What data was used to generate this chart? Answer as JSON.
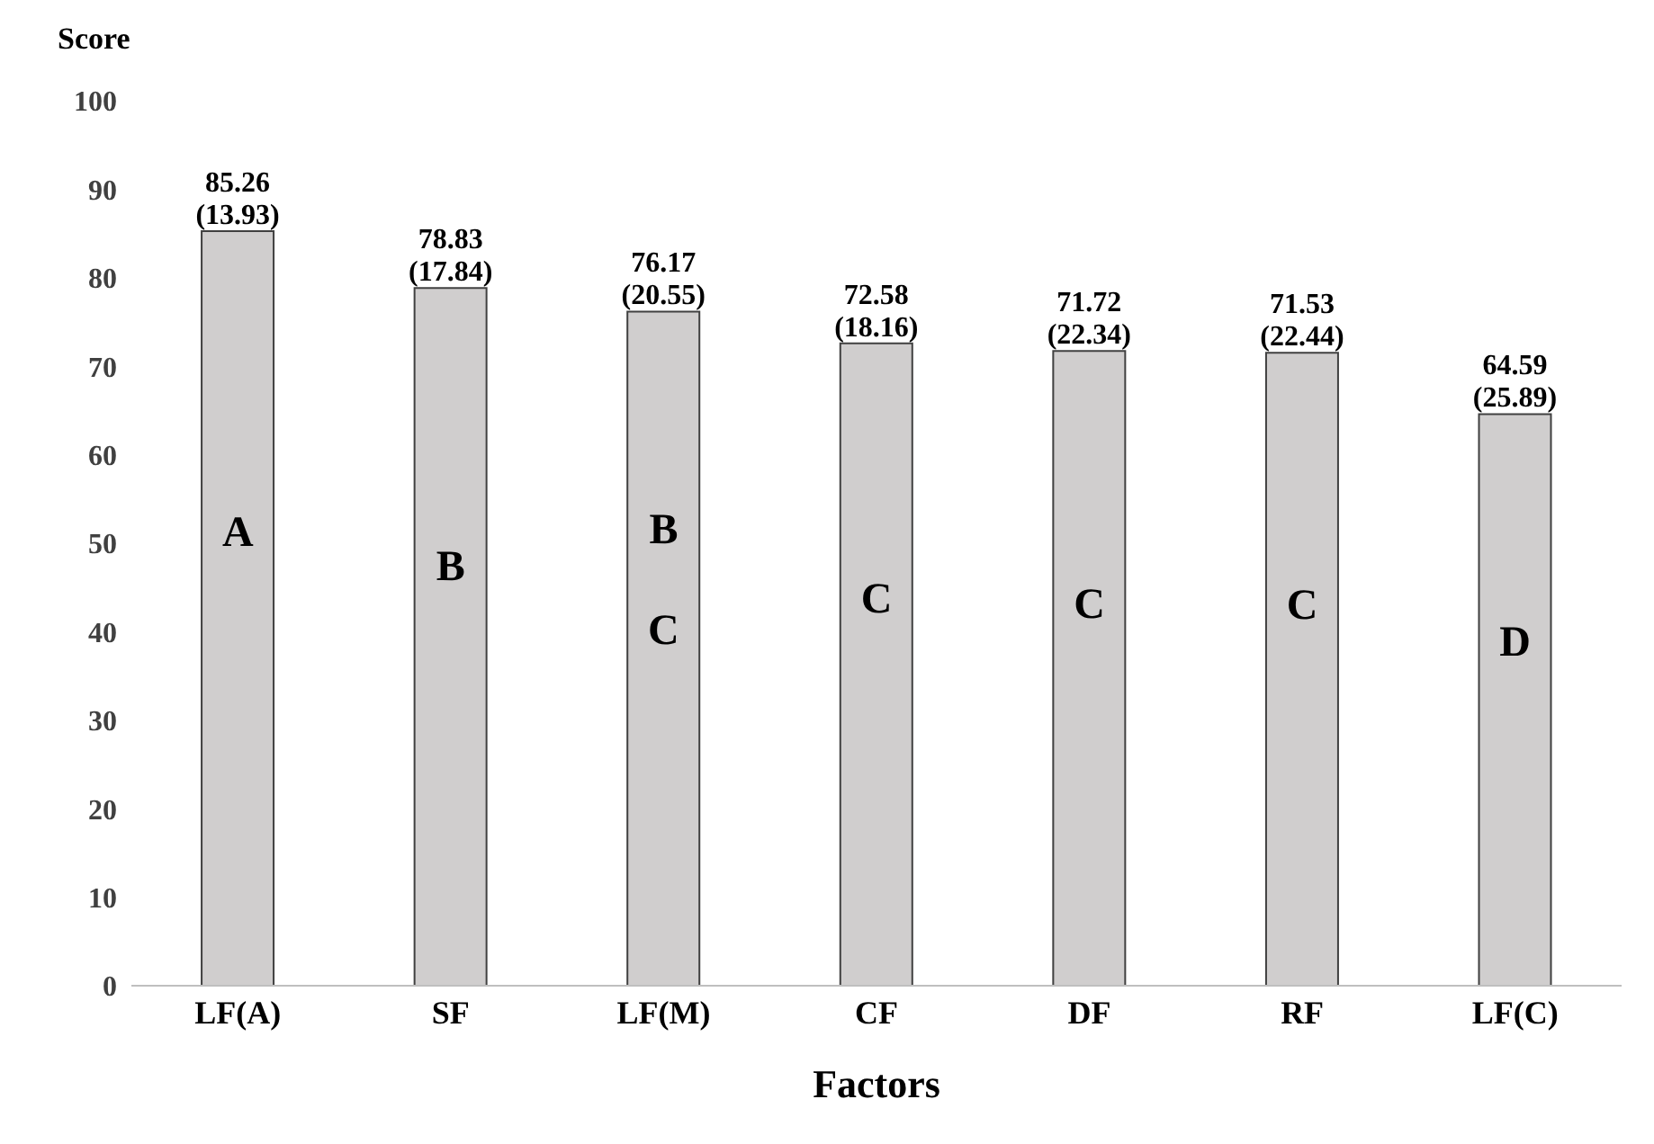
{
  "chart_data": {
    "type": "bar",
    "ylabel": "Score",
    "xlabel": "Factors",
    "categories": [
      "LF(A)",
      "SF",
      "LF(M)",
      "CF",
      "DF",
      "RF",
      "LF(C)"
    ],
    "values": [
      85.26,
      78.83,
      76.17,
      72.58,
      71.72,
      71.53,
      64.59
    ],
    "value_labels": [
      "85.26\n(13.93)",
      "78.83\n(17.84)",
      "76.17\n(20.55)",
      "72.58\n(18.16)",
      "71.72\n(22.34)",
      "71.53\n(22.44)",
      "64.59\n(25.89)"
    ],
    "color": "#d0cece",
    "ylim": [
      0,
      100
    ],
    "yticks": [
      0,
      10,
      20,
      30,
      40,
      50,
      60,
      70,
      80,
      90,
      100
    ],
    "grid": false,
    "legend": false,
    "annotations": [
      "A",
      "B",
      "B\nC",
      "C",
      "C",
      "C",
      "D"
    ]
  }
}
